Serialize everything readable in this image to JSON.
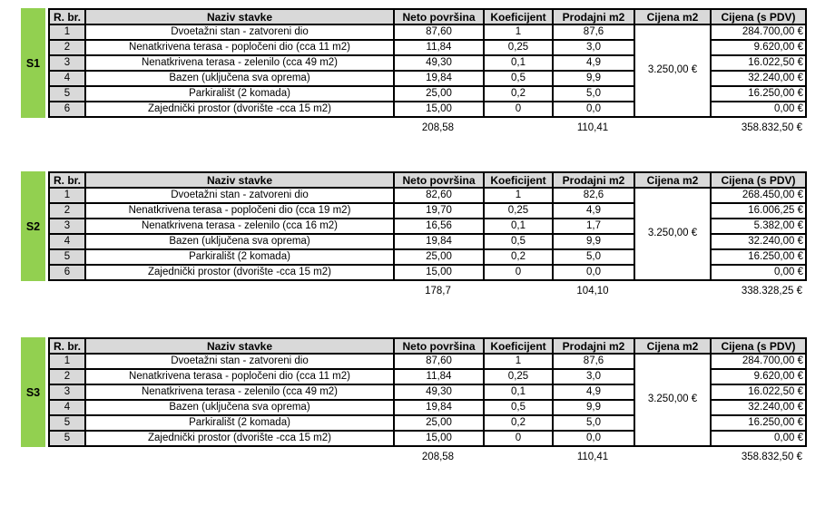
{
  "colors": {
    "label_green": "#92d050",
    "header_gray": "#d9d9d9",
    "border_black": "#000000",
    "cell_white": "#ffffff"
  },
  "columns": {
    "rbr": "R. br.",
    "naziv": "Naziv stavke",
    "neto": "Neto površina",
    "koef": "Koeficijent",
    "prodajni": "Prodajni m2",
    "cijena_m2": "Cijena m2",
    "cijena_pdv": "Cijena (s PDV)"
  },
  "tables": [
    {
      "label": "S1",
      "cijena_m2_value": "3.250,00 €",
      "rows": [
        [
          "1",
          "Dvoetažni stan - zatvoreni dio",
          "87,60",
          "1",
          "87,6",
          "284.700,00 €"
        ],
        [
          "2",
          "Nenatkrivena terasa - popločeni dio (cca 11 m2)",
          "11,84",
          "0,25",
          "3,0",
          "9.620,00 €"
        ],
        [
          "3",
          "Nenatkrivena terasa - zelenilo (cca 49 m2)",
          "49,30",
          "0,1",
          "4,9",
          "16.022,50 €"
        ],
        [
          "4",
          "Bazen (uključena sva oprema)",
          "19,84",
          "0,5",
          "9,9",
          "32.240,00 €"
        ],
        [
          "5",
          "Parkirališt (2 komada)",
          "25,00",
          "0,2",
          "5,0",
          "16.250,00 €"
        ],
        [
          "6",
          "Zajednički prostor (dvorište -cca 15 m2)",
          "15,00",
          "0",
          "0,0",
          "0,00 €"
        ]
      ],
      "totals": {
        "neto": "208,58",
        "prodajni": "110,41",
        "cijena": "358.832,50 €"
      }
    },
    {
      "label": "S2",
      "cijena_m2_value": "3.250,00 €",
      "rows": [
        [
          "1",
          "Dvoetažni stan - zatvoreni dio",
          "82,60",
          "1",
          "82,6",
          "268.450,00 €"
        ],
        [
          "2",
          "Nenatkrivena terasa - popločeni dio (cca 19 m2)",
          "19,70",
          "0,25",
          "4,9",
          "16.006,25 €"
        ],
        [
          "3",
          "Nenatkrivena terasa - zelenilo (cca 16 m2)",
          "16,56",
          "0,1",
          "1,7",
          "5.382,00 €"
        ],
        [
          "4",
          "Bazen (uključena sva oprema)",
          "19,84",
          "0,5",
          "9,9",
          "32.240,00 €"
        ],
        [
          "5",
          "Parkirališt (2 komada)",
          "25,00",
          "0,2",
          "5,0",
          "16.250,00 €"
        ],
        [
          "6",
          "Zajednički prostor (dvorište -cca 15 m2)",
          "15,00",
          "0",
          "0,0",
          "0,00 €"
        ]
      ],
      "totals": {
        "neto": "178,7",
        "prodajni": "104,10",
        "cijena": "338.328,25 €"
      }
    },
    {
      "label": "S3",
      "cijena_m2_value": "3.250,00 €",
      "rows": [
        [
          "1",
          "Dvoetažni stan - zatvoreni dio",
          "87,60",
          "1",
          "87,6",
          "284.700,00 €"
        ],
        [
          "2",
          "Nenatkrivena terasa - popločeni dio (cca 11 m2)",
          "11,84",
          "0,25",
          "3,0",
          "9.620,00 €"
        ],
        [
          "3",
          "Nenatkrivena terasa - zelenilo (cca 49 m2)",
          "49,30",
          "0,1",
          "4,9",
          "16.022,50 €"
        ],
        [
          "4",
          "Bazen (uključena sva oprema)",
          "19,84",
          "0,5",
          "9,9",
          "32.240,00 €"
        ],
        [
          "5",
          "Parkirališt (2 komada)",
          "25,00",
          "0,2",
          "5,0",
          "16.250,00 €"
        ],
        [
          "5",
          "Zajednički prostor (dvorište -cca 15 m2)",
          "15,00",
          "0",
          "0,0",
          "0,00 €"
        ]
      ],
      "totals": {
        "neto": "208,58",
        "prodajni": "110,41",
        "cijena": "358.832,50 €"
      }
    }
  ]
}
